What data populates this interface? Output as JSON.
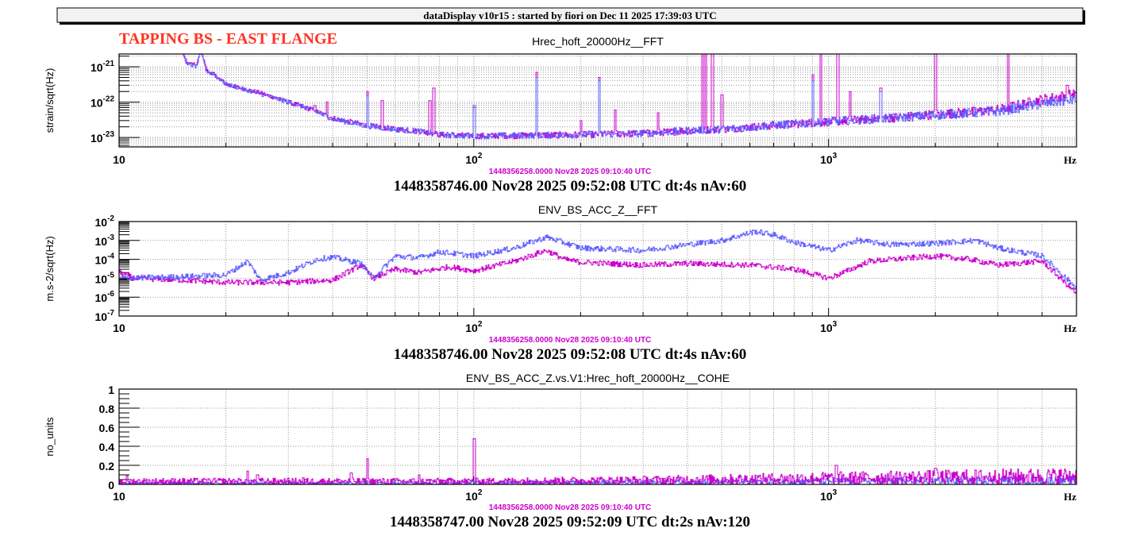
{
  "header": {
    "title": "dataDisplay v10r15 : started by fiori on Dec 11 2025 17:39:03 UTC"
  },
  "annotation": {
    "text": "TAPPING BS - EAST FLANGE",
    "color": "#ff3322"
  },
  "colors": {
    "current": "#6060ff",
    "reference": "#cc00cc",
    "reference_text": "#cc00cc"
  },
  "chart_data": [
    {
      "type": "line",
      "title": "Hrec_hoft_20000Hz__FFT",
      "ylabel": "strain/sqrt(Hz)",
      "xlabel": "Hz",
      "xscale": "log",
      "yscale": "log",
      "xlim": [
        10,
        5000
      ],
      "ylim": [
        2.3e-21,
        5.4e-24
      ],
      "x_ticks": [
        {
          "value": 10,
          "base": "10",
          "exp": ""
        },
        {
          "value": 100,
          "base": "10",
          "exp": "2"
        },
        {
          "value": 1000,
          "base": "10",
          "exp": "3"
        }
      ],
      "y_ticks": [
        {
          "value": 1e-21,
          "base": "10",
          "exp": "-21"
        },
        {
          "value": 1e-22,
          "base": "10",
          "exp": "-22"
        },
        {
          "value": 1e-23,
          "base": "10",
          "exp": "-23"
        }
      ],
      "grid": true,
      "reference_label": "1448356258.0000 Nov28 2025 09:10:40 UTC",
      "time_label": "1448358746.00 Nov28 2025 09:52:08 UTC dt:4s nAv:60",
      "series": [
        {
          "name": "reference",
          "color": "#cc00cc",
          "points": [
            [
              10,
              3e-21
            ],
            [
              15,
              3e-21
            ],
            [
              15.5,
              1.3e-21
            ],
            [
              16.5,
              1.1e-21
            ],
            [
              17,
              3e-21
            ],
            [
              17.6,
              8e-22
            ],
            [
              18.5,
              6e-22
            ],
            [
              20,
              3.2e-22
            ],
            [
              25,
              1.8e-22
            ],
            [
              30,
              1e-22
            ],
            [
              35,
              6e-23
            ],
            [
              40,
              3.5e-23
            ],
            [
              50,
              2.2e-23
            ],
            [
              60,
              1.7e-23
            ],
            [
              70,
              1.5e-23
            ],
            [
              80,
              1.2e-23
            ],
            [
              100,
              1.1e-23
            ],
            [
              150,
              1.15e-23
            ],
            [
              200,
              1.2e-23
            ],
            [
              300,
              1.3e-23
            ],
            [
              420,
              1.6e-23
            ],
            [
              500,
              1.7e-23
            ],
            [
              700,
              2.2e-23
            ],
            [
              1000,
              2.8e-23
            ],
            [
              1500,
              3.6e-23
            ],
            [
              2000,
              4.5e-23
            ],
            [
              3000,
              6e-23
            ],
            [
              4000,
              1.2e-22
            ],
            [
              5000,
              1.7e-22
            ]
          ],
          "peaks": [
            [
              35.5,
              8e-23
            ],
            [
              38.5,
              1e-22
            ],
            [
              50,
              2e-22
            ],
            [
              55,
              1.1e-22
            ],
            [
              75,
              1.1e-22
            ],
            [
              77,
              2.5e-22
            ],
            [
              100,
              7e-23
            ],
            [
              150,
              7e-22
            ],
            [
              200,
              3e-23
            ],
            [
              225,
              5e-22
            ],
            [
              250,
              6e-23
            ],
            [
              330,
              5e-23
            ],
            [
              440,
              3e-21
            ],
            [
              450,
              3e-21
            ],
            [
              470,
              3e-21
            ],
            [
              500,
              1.6e-22
            ],
            [
              900,
              6e-22
            ],
            [
              950,
              3e-21
            ],
            [
              1060,
              3e-21
            ],
            [
              1150,
              2e-22
            ],
            [
              1400,
              2.5e-22
            ],
            [
              2000,
              3e-21
            ],
            [
              3200,
              3e-21
            ],
            [
              4700,
              3e-22
            ]
          ]
        },
        {
          "name": "current",
          "color": "#6060ff",
          "points": [
            [
              10,
              3e-21
            ],
            [
              15,
              3e-21
            ],
            [
              15.5,
              1.2e-21
            ],
            [
              16.5,
              1e-21
            ],
            [
              17,
              3e-21
            ],
            [
              17.6,
              7.5e-22
            ],
            [
              18.5,
              6e-22
            ],
            [
              20,
              3.2e-22
            ],
            [
              25,
              1.7e-22
            ],
            [
              30,
              1e-22
            ],
            [
              35,
              6e-23
            ],
            [
              40,
              3.3e-23
            ],
            [
              50,
              2.1e-23
            ],
            [
              60,
              1.7e-23
            ],
            [
              70,
              1.5e-23
            ],
            [
              80,
              1.2e-23
            ],
            [
              100,
              1.1e-23
            ],
            [
              150,
              1.15e-23
            ],
            [
              200,
              1.2e-23
            ],
            [
              300,
              1.3e-23
            ],
            [
              420,
              1.6e-23
            ],
            [
              500,
              1.7e-23
            ],
            [
              700,
              2.2e-23
            ],
            [
              1000,
              2.8e-23
            ],
            [
              1500,
              3.5e-23
            ],
            [
              2000,
              4.3e-23
            ],
            [
              3000,
              5.5e-23
            ],
            [
              4000,
              9e-23
            ],
            [
              5000,
              1.2e-22
            ]
          ],
          "peaks": [
            [
              50,
              1.5e-22
            ],
            [
              100,
              8e-23
            ],
            [
              150,
              5e-22
            ],
            [
              225,
              4e-22
            ],
            [
              900,
              4e-22
            ],
            [
              1400,
              2e-22
            ]
          ]
        }
      ]
    },
    {
      "type": "line",
      "title": "ENV_BS_ACC_Z__FFT",
      "ylabel": "m.s-2/sqrt(Hz)",
      "xlabel": "Hz",
      "xscale": "log",
      "yscale": "log",
      "xlim": [
        10,
        5000
      ],
      "ylim": [
        0.01,
        1e-07
      ],
      "x_ticks": [
        {
          "value": 10,
          "base": "10",
          "exp": ""
        },
        {
          "value": 100,
          "base": "10",
          "exp": "2"
        },
        {
          "value": 1000,
          "base": "10",
          "exp": "3"
        }
      ],
      "y_ticks": [
        {
          "value": 0.01,
          "base": "10",
          "exp": "-2"
        },
        {
          "value": 0.001,
          "base": "10",
          "exp": "-3"
        },
        {
          "value": 0.0001,
          "base": "10",
          "exp": "-4"
        },
        {
          "value": 1e-05,
          "base": "10",
          "exp": "-5"
        },
        {
          "value": 1e-06,
          "base": "10",
          "exp": "-6"
        },
        {
          "value": 1e-07,
          "base": "10",
          "exp": "-7"
        }
      ],
      "grid": true,
      "reference_label": "1448356258.0000 Nov28 2025 09:10:40 UTC",
      "time_label": "1448358746.00 Nov28 2025 09:52:08 UTC dt:4s nAv:60",
      "series": [
        {
          "name": "reference",
          "color": "#cc00cc",
          "points": [
            [
              10,
              2e-05
            ],
            [
              11,
              1e-05
            ],
            [
              15,
              8e-06
            ],
            [
              20,
              6e-06
            ],
            [
              30,
              6e-06
            ],
            [
              40,
              8e-06
            ],
            [
              48,
              5e-05
            ],
            [
              52,
              1e-05
            ],
            [
              60,
              3e-05
            ],
            [
              70,
              2e-05
            ],
            [
              85,
              4e-05
            ],
            [
              100,
              2.5e-05
            ],
            [
              130,
              8e-05
            ],
            [
              160,
              0.0003
            ],
            [
              180,
              0.0001
            ],
            [
              200,
              7e-05
            ],
            [
              300,
              5e-05
            ],
            [
              400,
              6e-05
            ],
            [
              600,
              5e-05
            ],
            [
              800,
              3e-05
            ],
            [
              1000,
              1e-05
            ],
            [
              1100,
              2e-05
            ],
            [
              1300,
              8e-05
            ],
            [
              2000,
              0.00015
            ],
            [
              2500,
              0.0001
            ],
            [
              3000,
              5e-05
            ],
            [
              4000,
              8e-05
            ],
            [
              5000,
              1.5e-06
            ]
          ],
          "peaks": []
        },
        {
          "name": "current",
          "color": "#6060ff",
          "points": [
            [
              10,
              1e-05
            ],
            [
              15,
              1.2e-05
            ],
            [
              20,
              1.5e-05
            ],
            [
              23,
              8e-05
            ],
            [
              25,
              8e-06
            ],
            [
              30,
              2e-05
            ],
            [
              36,
              0.0001
            ],
            [
              40,
              0.00013
            ],
            [
              48,
              6e-05
            ],
            [
              52,
              1e-05
            ],
            [
              60,
              0.00015
            ],
            [
              70,
              0.00012
            ],
            [
              80,
              0.00025
            ],
            [
              100,
              0.00015
            ],
            [
              130,
              0.0004
            ],
            [
              160,
              0.0015
            ],
            [
              200,
              0.0004
            ],
            [
              300,
              0.0003
            ],
            [
              400,
              0.0006
            ],
            [
              500,
              0.001
            ],
            [
              620,
              0.003
            ],
            [
              700,
              0.002
            ],
            [
              800,
              0.0008
            ],
            [
              1000,
              0.0003
            ],
            [
              1200,
              0.001
            ],
            [
              1500,
              0.0006
            ],
            [
              2000,
              0.0007
            ],
            [
              2600,
              0.001
            ],
            [
              3000,
              0.0004
            ],
            [
              4000,
              0.00015
            ],
            [
              5000,
              3e-06
            ]
          ],
          "peaks": []
        }
      ]
    },
    {
      "type": "line",
      "title": "ENV_BS_ACC_Z.vs.V1:Hrec_hoft_20000Hz__COHE",
      "ylabel": "no_units",
      "xlabel": "Hz",
      "xscale": "log",
      "yscale": "linear",
      "xlim": [
        10,
        5000
      ],
      "ylim": [
        1,
        0
      ],
      "x_ticks": [
        {
          "value": 10,
          "base": "10",
          "exp": ""
        },
        {
          "value": 100,
          "base": "10",
          "exp": "2"
        },
        {
          "value": 1000,
          "base": "10",
          "exp": "3"
        }
      ],
      "y_ticks": [
        {
          "value": 1,
          "base": "1",
          "exp": ""
        },
        {
          "value": 0.8,
          "base": "0.8",
          "exp": ""
        },
        {
          "value": 0.6,
          "base": "0.6",
          "exp": ""
        },
        {
          "value": 0.4,
          "base": "0.4",
          "exp": ""
        },
        {
          "value": 0.2,
          "base": "0.2",
          "exp": ""
        },
        {
          "value": 0,
          "base": "0",
          "exp": ""
        }
      ],
      "grid": true,
      "reference_label": "1448356258.0000 Nov28 2025 09:10:40 UTC",
      "time_label": "1448358747.00 Nov28 2025 09:52:09 UTC dt:2s nAv:120",
      "series": [
        {
          "name": "current",
          "color": "#6060ff",
          "points": [
            [
              10,
              0.01
            ],
            [
              100,
              0.015
            ],
            [
              1000,
              0.03
            ],
            [
              5000,
              0.04
            ]
          ],
          "peaks": [
            [
              23,
              0.04
            ],
            [
              30,
              0.03
            ]
          ]
        },
        {
          "name": "reference",
          "color": "#cc00cc",
          "points": [
            [
              10,
              0.03
            ],
            [
              20,
              0.03
            ],
            [
              30,
              0.03
            ],
            [
              100,
              0.03
            ],
            [
              300,
              0.04
            ],
            [
              1000,
              0.06
            ],
            [
              5000,
              0.08
            ]
          ],
          "peaks": [
            [
              10.5,
              0.09
            ],
            [
              18.5,
              0.06
            ],
            [
              23,
              0.14
            ],
            [
              24.5,
              0.1
            ],
            [
              33,
              0.07
            ],
            [
              45,
              0.12
            ],
            [
              50,
              0.27
            ],
            [
              70,
              0.1
            ],
            [
              100,
              0.48
            ],
            [
              1050,
              0.2
            ],
            [
              2000,
              0.17
            ]
          ]
        }
      ]
    }
  ]
}
